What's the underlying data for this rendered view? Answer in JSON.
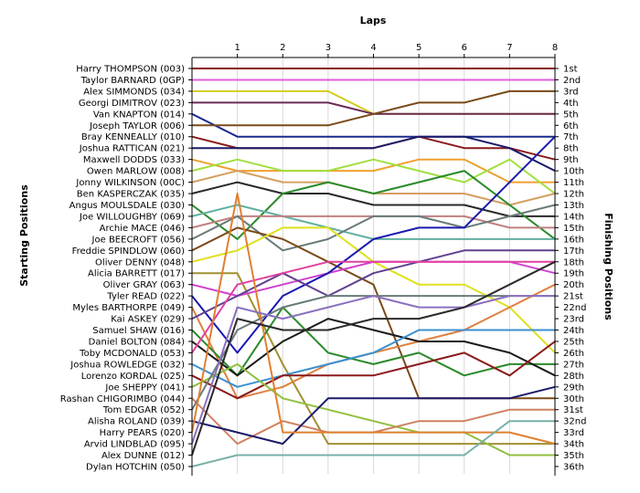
{
  "chart_data": {
    "type": "line",
    "title": "Laps",
    "ylabel_left": "Starting Positions",
    "ylabel_right": "Finishing Positions",
    "x": [
      0,
      1,
      2,
      3,
      4,
      5,
      6,
      7,
      8
    ],
    "x_tick_labels": [
      "1",
      "2",
      "3",
      "4",
      "5",
      "6",
      "7",
      "8"
    ],
    "y_range": [
      1,
      36
    ],
    "drivers": [
      {
        "name": "Harry THOMPSON (003)",
        "color": "#8b1a1a",
        "positions": [
          1,
          1,
          1,
          1,
          1,
          1,
          1,
          1,
          1
        ]
      },
      {
        "name": "Taylor BARNARD (0GP)",
        "color": "#e05ce0",
        "positions": [
          2,
          2,
          2,
          2,
          2,
          2,
          2,
          2,
          2
        ]
      },
      {
        "name": "Alex SIMMONDS (034)",
        "color": "#d4cc20",
        "positions": [
          3,
          3,
          3,
          3,
          5,
          5,
          5,
          5,
          5
        ]
      },
      {
        "name": "Georgi DIMITROV (023)",
        "color": "#6a2a5a",
        "positions": [
          4,
          4,
          4,
          4,
          5,
          5,
          5,
          5,
          5
        ]
      },
      {
        "name": "Van KNAPTON (014)",
        "color": "#1a2a8b",
        "positions": [
          5,
          7,
          7,
          7,
          7,
          7,
          7,
          7,
          7
        ]
      },
      {
        "name": "Joseph TAYLOR (006)",
        "color": "#7a4a1a",
        "positions": [
          6,
          6,
          6,
          6,
          5,
          4,
          4,
          3,
          3
        ]
      },
      {
        "name": "Bray KENNEALLY (010)",
        "color": "#8b1a1a",
        "positions": [
          7,
          8,
          8,
          8,
          8,
          7,
          8,
          8,
          9
        ]
      },
      {
        "name": "Joshua RATTICAN (021)",
        "color": "#1a1a6a",
        "positions": [
          8,
          8,
          8,
          8,
          8,
          7,
          7,
          8,
          10
        ]
      },
      {
        "name": "Maxwell DODDS (033)",
        "color": "#f0a030",
        "positions": [
          9,
          10,
          10,
          10,
          10,
          9,
          9,
          11,
          11
        ]
      },
      {
        "name": "Owen MARLOW (008)",
        "color": "#a0e040",
        "positions": [
          10,
          9,
          10,
          10,
          9,
          10,
          11,
          9,
          12
        ]
      },
      {
        "name": "Jonny WILKINSON (00C)",
        "color": "#d4a060",
        "positions": [
          11,
          10,
          11,
          11,
          12,
          12,
          12,
          13,
          12
        ]
      },
      {
        "name": "Ben KASPERCZAK (035)",
        "color": "#2a2a2a",
        "positions": [
          12,
          11,
          12,
          12,
          13,
          13,
          13,
          14,
          14
        ]
      },
      {
        "name": "Angus MOULSDALE (030)",
        "color": "#2a8a2a",
        "positions": [
          13,
          16,
          12,
          11,
          12,
          11,
          10,
          13,
          16
        ]
      },
      {
        "name": "Joe WILLOUGHBY (069)",
        "color": "#60b0a0",
        "positions": [
          14,
          13,
          14,
          15,
          16,
          16,
          16,
          16,
          16
        ]
      },
      {
        "name": "Archie MACE (046)",
        "color": "#c08080",
        "positions": [
          15,
          14,
          14,
          14,
          14,
          14,
          14,
          15,
          15
        ]
      },
      {
        "name": "Joe BEECROFT (056)",
        "color": "#6a7a7a",
        "positions": [
          16,
          14,
          17,
          16,
          14,
          14,
          15,
          14,
          13
        ]
      },
      {
        "name": "Freddie SPINDLOW (060)",
        "color": "#7a4a1a",
        "positions": [
          17,
          15,
          16,
          18,
          20,
          30,
          30,
          30,
          30
        ]
      },
      {
        "name": "Oliver DENNY (048)",
        "color": "#e0e020",
        "positions": [
          18,
          17,
          15,
          15,
          18,
          20,
          20,
          22,
          26
        ]
      },
      {
        "name": "Alicia BARRETT (017)",
        "color": "#a09030",
        "positions": [
          19,
          19,
          27,
          34,
          34,
          34,
          34,
          34,
          34
        ]
      },
      {
        "name": "Oliver GRAY (063)",
        "color": "#d040d0",
        "positions": [
          20,
          21,
          20,
          19,
          18,
          18,
          18,
          18,
          19
        ]
      },
      {
        "name": "Tyler READ (022)",
        "color": "#1a1ab0",
        "positions": [
          21,
          26,
          21,
          19,
          16,
          15,
          15,
          11,
          7
        ]
      },
      {
        "name": "Myles BARTHORPE (049)",
        "color": "#e08040",
        "positions": [
          22,
          30,
          29,
          27,
          26,
          25,
          24,
          22,
          20
        ]
      },
      {
        "name": "Kai ASKEY (029)",
        "color": "#604090",
        "positions": [
          23,
          21,
          19,
          21,
          19,
          18,
          17,
          17,
          17
        ]
      },
      {
        "name": "Samuel SHAW (016)",
        "color": "#2a8a2a",
        "positions": [
          24,
          28,
          22,
          26,
          27,
          26,
          28,
          27,
          27
        ]
      },
      {
        "name": "Daniel BOLTON (084)",
        "color": "#1a1a1a",
        "positions": [
          25,
          28,
          25,
          23,
          24,
          25,
          25,
          26,
          28
        ]
      },
      {
        "name": "Toby MCDONALD (053)",
        "color": "#e040a0",
        "positions": [
          26,
          20,
          19,
          18,
          18,
          18,
          18,
          18,
          18
        ]
      },
      {
        "name": "Joshua ROWLEDGE (032)",
        "color": "#3a90d0",
        "positions": [
          27,
          29,
          28,
          27,
          26,
          24,
          24,
          24,
          24
        ]
      },
      {
        "name": "Lorenzo KORDAL (025)",
        "color": "#8b1a1a",
        "positions": [
          28,
          30,
          28,
          28,
          28,
          27,
          26,
          28,
          25
        ]
      },
      {
        "name": "Joe SHEPPY (041)",
        "color": "#90c040",
        "positions": [
          29,
          27,
          30,
          31,
          32,
          33,
          33,
          35,
          35
        ]
      },
      {
        "name": "Rashan CHIGORIMBO (044)",
        "color": "#d08060",
        "positions": [
          30,
          34,
          32,
          33,
          33,
          32,
          32,
          31,
          31
        ]
      },
      {
        "name": "Tom EDGAR (052)",
        "color": "#6a7a7a",
        "positions": [
          31,
          24,
          22,
          21,
          21,
          21,
          21,
          21,
          21
        ]
      },
      {
        "name": "Alisha ROLAND (039)",
        "color": "#1a1a6a",
        "positions": [
          32,
          33,
          34,
          30,
          30,
          30,
          30,
          30,
          29
        ]
      },
      {
        "name": "Harry PEARS (020)",
        "color": "#e08030",
        "positions": [
          33,
          12,
          33,
          33,
          33,
          33,
          33,
          33,
          34
        ]
      },
      {
        "name": "Arvid LINDBLAD (095)",
        "color": "#8a70c0",
        "positions": [
          34,
          22,
          23,
          22,
          21,
          22,
          22,
          21,
          21
        ]
      },
      {
        "name": "Alex DUNNE (012)",
        "color": "#2a2a2a",
        "positions": [
          35,
          23,
          24,
          24,
          23,
          23,
          22,
          20,
          18
        ]
      },
      {
        "name": "Dylan HOTCHIN (050)",
        "color": "#78b0a8",
        "positions": [
          36,
          35,
          35,
          35,
          35,
          35,
          35,
          32,
          32
        ]
      }
    ],
    "finishing_labels": [
      "1st",
      "2nd",
      "3rd",
      "4th",
      "5th",
      "6th",
      "7th",
      "8th",
      "9th",
      "10th",
      "11th",
      "12th",
      "13th",
      "14th",
      "15th",
      "16th",
      "17th",
      "18th",
      "19th",
      "20th",
      "21st",
      "22nd",
      "23rd",
      "24th",
      "25th",
      "26th",
      "27th",
      "28th",
      "29th",
      "30th",
      "31st",
      "32nd",
      "33rd",
      "34th",
      "35th",
      "36th"
    ]
  }
}
